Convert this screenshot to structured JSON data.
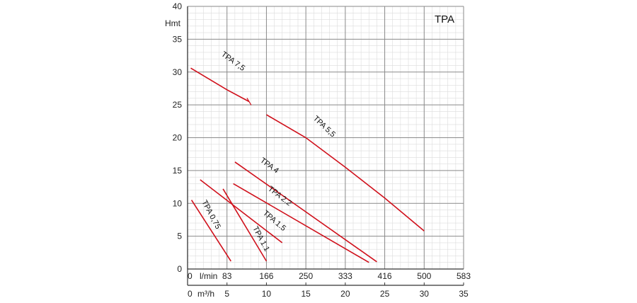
{
  "chart_data": {
    "type": "line",
    "title": "TPA",
    "ylabel": "Hmt",
    "xlabel_primary": "l/min",
    "xlabel_secondary": "m³/h",
    "ylim": [
      0,
      40
    ],
    "xlim": [
      0,
      35
    ],
    "x_ticks_secondary": [
      0,
      5,
      10,
      15,
      20,
      25,
      30,
      35
    ],
    "x_tick_labels_primary": [
      "0",
      "83",
      "166",
      "250",
      "333",
      "416",
      "500",
      "583"
    ],
    "y_ticks": [
      0,
      5,
      10,
      15,
      20,
      25,
      30,
      35,
      40
    ],
    "grid": true,
    "line_color": "#d0101b",
    "series": [
      {
        "name": "TPA 0,75",
        "x": [
          0.5,
          5.5
        ],
        "y": [
          10.5,
          1.2
        ]
      },
      {
        "name": "TPA 1.1",
        "x": [
          4.5,
          10
        ],
        "y": [
          12.2,
          1.2
        ]
      },
      {
        "name": "TPA 1.5",
        "x": [
          1.6,
          12
        ],
        "y": [
          13.6,
          4.0
        ]
      },
      {
        "name": "TPA 2.2",
        "x": [
          5.8,
          23
        ],
        "y": [
          13.0,
          1.0
        ]
      },
      {
        "name": "TPA 4",
        "x": [
          6.0,
          24
        ],
        "y": [
          16.3,
          1.1
        ]
      },
      {
        "name": "TPA 5,5",
        "x": [
          10,
          15,
          20,
          25,
          30
        ],
        "y": [
          23.5,
          20.0,
          15.5,
          10.8,
          5.8
        ]
      },
      {
        "name": "TPA 7,5",
        "x": [
          0.4,
          5,
          7.8
        ],
        "y": [
          30.6,
          27.3,
          25.5
        ]
      }
    ]
  }
}
